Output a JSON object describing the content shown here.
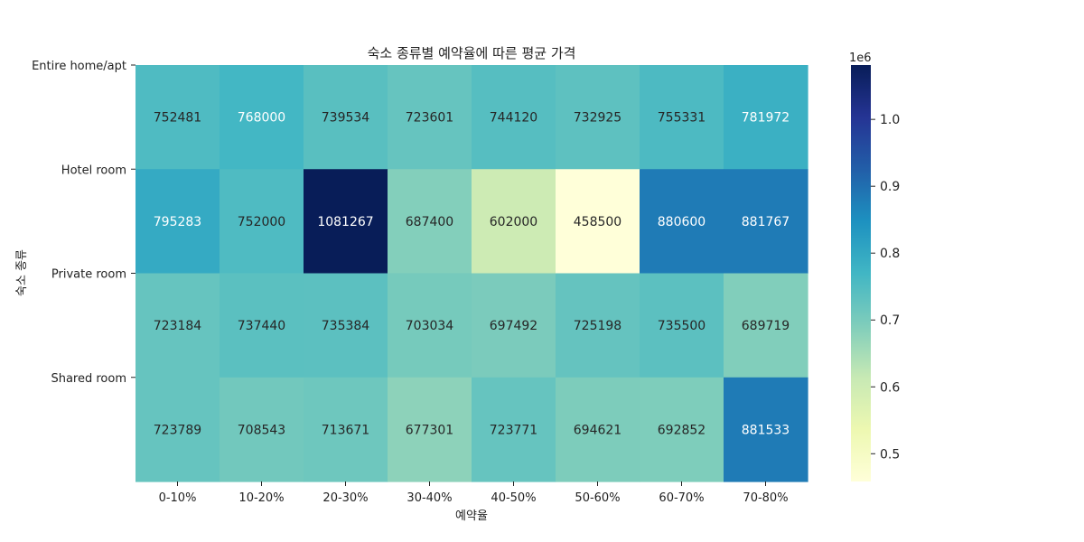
{
  "chart_data": {
    "type": "heatmap",
    "title": "숙소 종류별 예약율에 따른 평균 가격",
    "xlabel": "예약율",
    "ylabel": "숙소 종류",
    "x_categories": [
      "0-10%",
      "10-20%",
      "20-30%",
      "30-40%",
      "40-50%",
      "50-60%",
      "60-70%",
      "70-80%"
    ],
    "y_categories": [
      "Entire home/apt",
      "Hotel room",
      "Private room",
      "Shared room"
    ],
    "values": [
      [
        752481,
        768000,
        739534,
        723601,
        744120,
        732925,
        755331,
        781972
      ],
      [
        795283,
        752000,
        1081267,
        687400,
        602000,
        458500,
        880600,
        881767
      ],
      [
        723184,
        737440,
        735384,
        703034,
        697492,
        725198,
        735500,
        689719
      ],
      [
        723789,
        708543,
        713671,
        677301,
        723771,
        694621,
        692852,
        881533
      ]
    ],
    "colormap": "YlGnBu",
    "vmin": 458500,
    "vmax": 1081267,
    "colorbar": {
      "multiplier": "1e6",
      "ticks": [
        0.5,
        0.6,
        0.7,
        0.8,
        0.9,
        1.0
      ],
      "tick_labels": [
        "0.5",
        "0.6",
        "0.7",
        "0.8",
        "0.9",
        "1.0"
      ]
    }
  }
}
